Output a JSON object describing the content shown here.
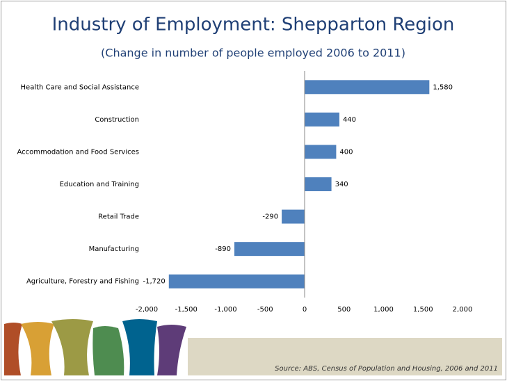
{
  "chart_data": {
    "type": "barh",
    "title": "Industry of Employment: Shepparton Region",
    "subtitle": "(Change in number of people employed 2006 to 2011)",
    "source": "Source: ABS, Census of Population and Housing, 2006 and 2011",
    "categories": [
      "Health Care and Social Assistance",
      "Construction",
      "Accommodation and Food Services",
      "Education and Training",
      "Retail Trade",
      "Manufacturing",
      "Agriculture, Forestry and Fishing"
    ],
    "values": [
      1580,
      440,
      400,
      340,
      -290,
      -890,
      -1720
    ],
    "value_labels": [
      "1,580",
      "440",
      "400",
      "340",
      "-290",
      "-890",
      "-1,720"
    ],
    "color": "#4f81bd",
    "xlim": [
      -2000,
      2000
    ],
    "xticks": [
      {
        "value": -2000,
        "label": "-2,000"
      },
      {
        "value": -1500,
        "label": "-1,500"
      },
      {
        "value": -1000,
        "label": "-1,000"
      },
      -500,
      0,
      500,
      {
        "value": 1000,
        "label": "1,000"
      },
      {
        "value": 1500,
        "label": "1,500"
      },
      {
        "value": 2000,
        "label": "2,000"
      }
    ],
    "grid": false
  }
}
